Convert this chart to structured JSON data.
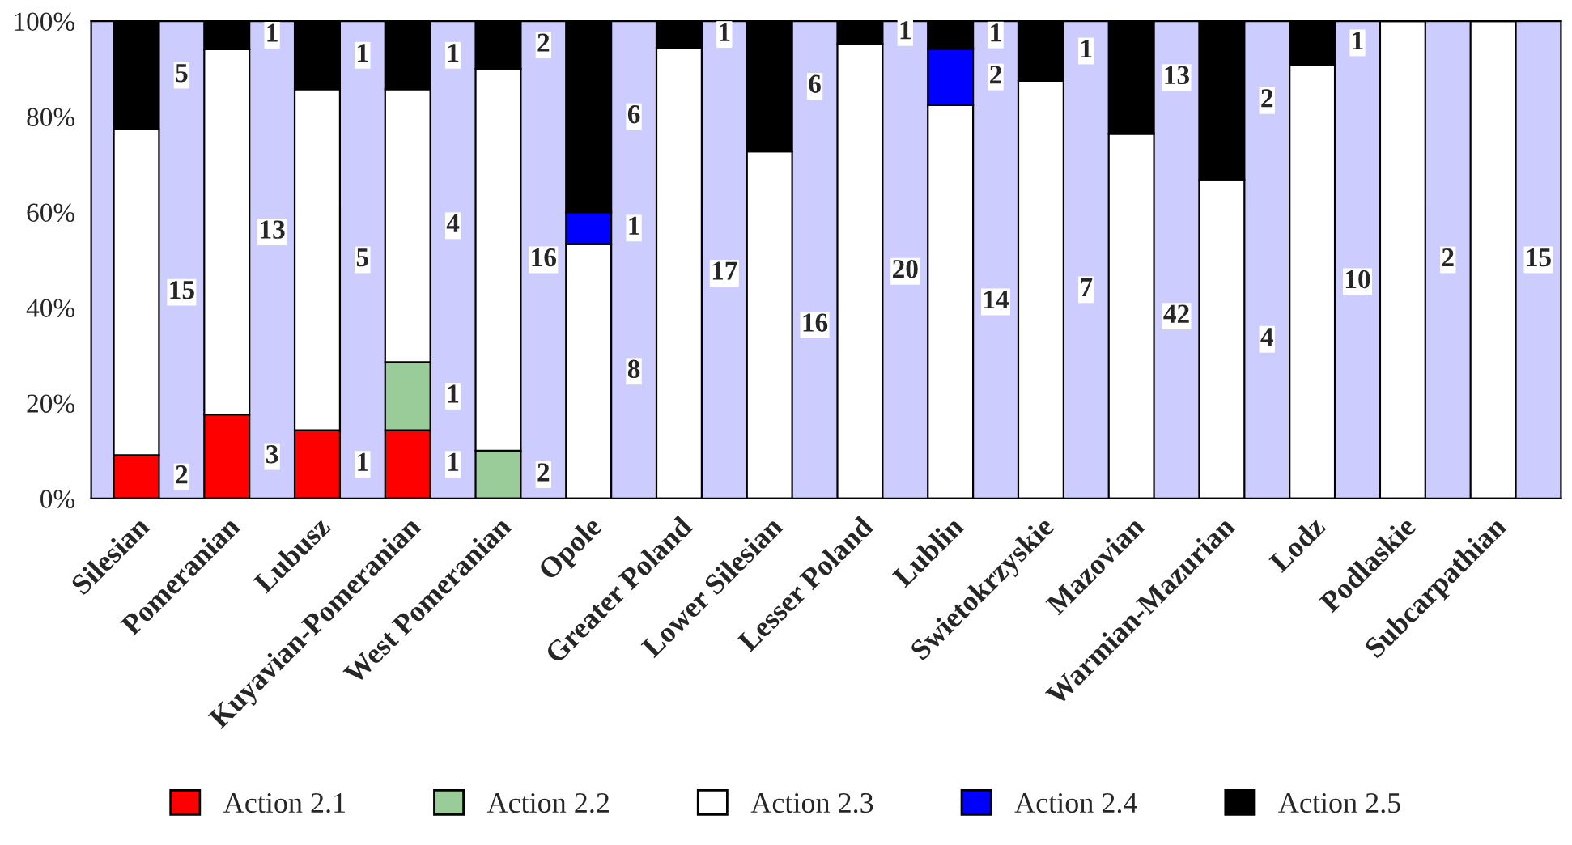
{
  "chart_data": {
    "type": "bar",
    "stacked": true,
    "categories": [
      "Silesian",
      "Pomeranian",
      "Lubusz",
      "Kuyavian-Pomeranian",
      "West Pomeranian",
      "Opole",
      "Greater Poland",
      "Lower Silesian",
      "Lesser Poland",
      "Lublin",
      "Swietokrzyskie",
      "Mazovian",
      "Warmian-Mazurian",
      "Lodz",
      "Podlaskie",
      "Subcarpathian"
    ],
    "series": [
      {
        "name": "Action 2.1",
        "color": "#ff0000",
        "values": [
          9.1,
          17.6,
          14.3,
          14.3,
          null,
          null,
          null,
          null,
          null,
          null,
          null,
          null,
          null,
          null,
          null,
          null
        ]
      },
      {
        "name": "Action 2.2",
        "color": "#99cc99",
        "values": [
          null,
          null,
          null,
          14.3,
          10.0,
          null,
          null,
          null,
          null,
          null,
          null,
          null,
          null,
          null,
          null,
          null
        ]
      },
      {
        "name": "Action 2.3",
        "color": "#ffffff",
        "values": [
          68.2,
          76.5,
          71.4,
          57.1,
          80.0,
          53.3,
          94.4,
          72.7,
          95.2,
          82.4,
          87.5,
          76.4,
          66.7,
          90.9,
          100,
          100
        ]
      },
      {
        "name": "Action 2.4",
        "color": "#0000ff",
        "values": [
          null,
          null,
          null,
          null,
          null,
          6.7,
          null,
          null,
          null,
          11.8,
          null,
          null,
          null,
          null,
          null,
          null
        ]
      },
      {
        "name": "Action 2.5",
        "color": "#000000",
        "values": [
          22.7,
          5.9,
          14.3,
          14.3,
          10.0,
          40.0,
          5.6,
          27.3,
          4.8,
          5.8,
          12.5,
          23.6,
          33.3,
          9.1,
          null,
          null
        ]
      }
    ],
    "annotations": [
      "2",
      "15",
      "5",
      "3",
      "13",
      "1",
      "1",
      "5",
      "1",
      "1",
      "1",
      "4",
      "1",
      "2",
      "16",
      "2",
      "8",
      "1",
      "6",
      "17",
      "1",
      "16",
      "6",
      "20",
      "1",
      "14",
      "2",
      "1",
      "7",
      "1",
      "42",
      "13",
      "4",
      "2",
      "10",
      "1",
      "2",
      "15"
    ],
    "ylim": [
      0,
      100
    ],
    "yticks": [
      {
        "value": 0,
        "label": "0%"
      },
      {
        "value": 20,
        "label": "20%"
      },
      {
        "value": 40,
        "label": "40%"
      },
      {
        "value": 60,
        "label": "60%"
      },
      {
        "value": 80,
        "label": "80%"
      },
      {
        "value": 100,
        "label": "100%"
      }
    ],
    "grid": false,
    "legend": "bottom"
  }
}
